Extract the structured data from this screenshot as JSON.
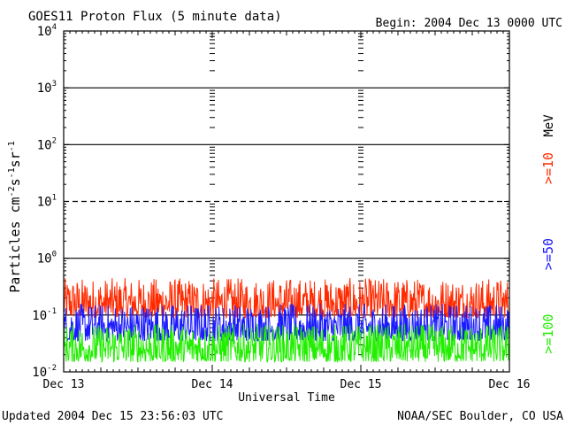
{
  "header": {
    "title": "GOES11 Proton Flux (5 minute data)",
    "begin": "Begin: 2004 Dec 13 0000 UTC"
  },
  "footer": {
    "updated": "Updated 2004 Dec 15 23:56:03 UTC",
    "credit": "NOAA/SEC Boulder, CO USA"
  },
  "colors": {
    "ge10": "#ff2a00",
    "ge50": "#1a1aff",
    "ge100": "#22ee00",
    "axis": "#000000"
  },
  "chart_data": {
    "type": "line",
    "title": "GOES11 Proton Flux (5 minute data)",
    "xlabel": "Universal Time",
    "ylabel": {
      "base": "Particles cm",
      "e1": "-2",
      "mid1": "s",
      "e2": "-1",
      "mid2": "sr",
      "e3": "-1"
    },
    "y_scale": "log",
    "ylim": [
      0.01,
      10000
    ],
    "y_ticks": [
      {
        "base": "10",
        "exp": "-2",
        "value": 0.01
      },
      {
        "base": "10",
        "exp": "-1",
        "value": 0.1
      },
      {
        "base": "10",
        "exp": "0",
        "value": 1
      },
      {
        "base": "10",
        "exp": "1",
        "value": 10
      },
      {
        "base": "10",
        "exp": "2",
        "value": 100
      },
      {
        "base": "10",
        "exp": "3",
        "value": 1000
      },
      {
        "base": "10",
        "exp": "4",
        "value": 10000
      }
    ],
    "x_ticks": [
      "Dec 13",
      "Dec 14",
      "Dec 15",
      "Dec 16"
    ],
    "xlim": [
      "2004-12-13 00:00",
      "2004-12-16 00:00"
    ],
    "threshold_lines": [
      {
        "value": 1000,
        "style": "solid"
      },
      {
        "value": 100,
        "style": "solid"
      },
      {
        "value": 10,
        "style": "dashed"
      },
      {
        "value": 1,
        "style": "solid"
      },
      {
        "value": 0.1,
        "style": "solid"
      }
    ],
    "legend_unit": "MeV",
    "series": [
      {
        "name": ">=10",
        "color": "#ff2a00",
        "typical_range": [
          0.09,
          0.45
        ]
      },
      {
        "name": ">=50",
        "color": "#1a1aff",
        "typical_range": [
          0.035,
          0.16
        ]
      },
      {
        "name": ">=100",
        "color": "#22ee00",
        "typical_range": [
          0.015,
          0.07
        ]
      }
    ]
  }
}
